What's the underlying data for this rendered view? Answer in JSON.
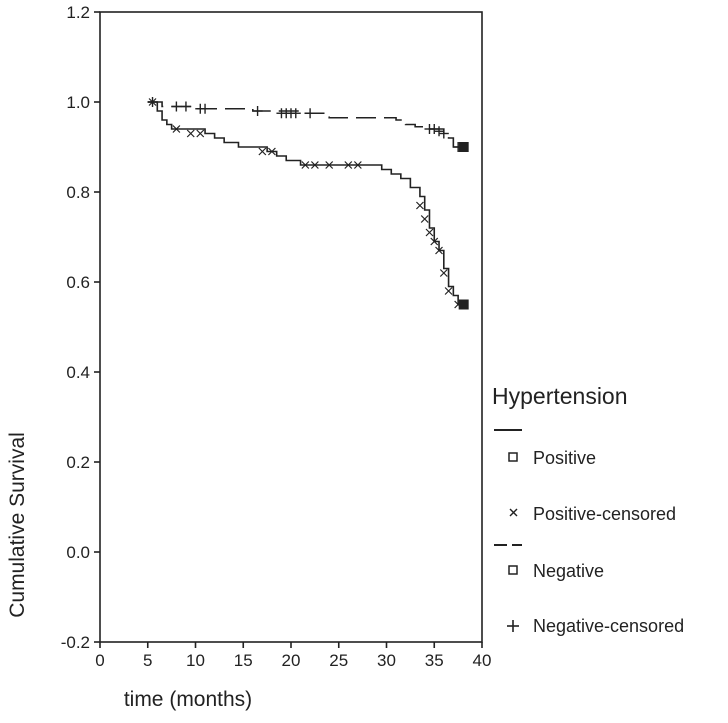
{
  "chart_data": {
    "type": "line",
    "title": "",
    "xlabel": "time (months)",
    "ylabel": "Cumulative Survival",
    "xlim": [
      0,
      40
    ],
    "ylim": [
      -0.2,
      1.2
    ],
    "x_ticks": [
      "0",
      "5",
      "10",
      "15",
      "20",
      "25",
      "30",
      "35",
      "40"
    ],
    "y_ticks": [
      "-0.2",
      "0.0",
      "0.2",
      "0.4",
      "0.6",
      "0.8",
      "1.0",
      "1.2"
    ],
    "grid": false,
    "legend": {
      "title": "Hypertension",
      "placement": "right",
      "items": [
        {
          "label": "Positive",
          "symbol": "solid-line-square"
        },
        {
          "label": "Positive-censored",
          "symbol": "x-mark"
        },
        {
          "label": "Negative",
          "symbol": "dashed-line-square"
        },
        {
          "label": "Negative-censored",
          "symbol": "plus-mark"
        }
      ]
    },
    "series": [
      {
        "name": "Positive",
        "style": "solid",
        "step": [
          [
            5,
            1.0
          ],
          [
            6,
            0.98
          ],
          [
            6.5,
            0.96
          ],
          [
            7,
            0.95
          ],
          [
            7.5,
            0.94
          ],
          [
            11,
            0.93
          ],
          [
            12,
            0.92
          ],
          [
            13,
            0.91
          ],
          [
            14.5,
            0.9
          ],
          [
            17.5,
            0.89
          ],
          [
            18.5,
            0.88
          ],
          [
            19.5,
            0.87
          ],
          [
            21,
            0.86
          ],
          [
            29.5,
            0.85
          ],
          [
            30.5,
            0.84
          ],
          [
            31.5,
            0.83
          ],
          [
            32.5,
            0.81
          ],
          [
            33.5,
            0.79
          ],
          [
            34,
            0.76
          ],
          [
            34.5,
            0.72
          ],
          [
            35,
            0.69
          ],
          [
            35.5,
            0.67
          ],
          [
            36,
            0.63
          ],
          [
            36.5,
            0.59
          ],
          [
            37,
            0.57
          ],
          [
            37.5,
            0.55
          ],
          [
            38.5,
            0.55
          ]
        ],
        "censored": [
          [
            5.5,
            1.0
          ],
          [
            8,
            0.94
          ],
          [
            9.5,
            0.93
          ],
          [
            10.5,
            0.93
          ],
          [
            17,
            0.89
          ],
          [
            18,
            0.89
          ],
          [
            21.5,
            0.86
          ],
          [
            22.5,
            0.86
          ],
          [
            24,
            0.86
          ],
          [
            26,
            0.86
          ],
          [
            27,
            0.86
          ],
          [
            33.5,
            0.77
          ],
          [
            34,
            0.74
          ],
          [
            34.5,
            0.71
          ],
          [
            35,
            0.69
          ],
          [
            35.5,
            0.67
          ],
          [
            36,
            0.62
          ],
          [
            36.5,
            0.58
          ],
          [
            37.5,
            0.55
          ],
          [
            38,
            0.55
          ]
        ]
      },
      {
        "name": "Negative",
        "style": "dashed",
        "step": [
          [
            5,
            1.0
          ],
          [
            6.5,
            0.99
          ],
          [
            10,
            0.985
          ],
          [
            16,
            0.98
          ],
          [
            21,
            0.975
          ],
          [
            24,
            0.965
          ],
          [
            31,
            0.96
          ],
          [
            32,
            0.95
          ],
          [
            33,
            0.945
          ],
          [
            34,
            0.94
          ],
          [
            36,
            0.93
          ],
          [
            36.5,
            0.92
          ],
          [
            37,
            0.9
          ],
          [
            38.5,
            0.9
          ]
        ],
        "censored": [
          [
            5.5,
            1.0
          ],
          [
            8,
            0.99
          ],
          [
            9,
            0.99
          ],
          [
            10.5,
            0.985
          ],
          [
            11,
            0.985
          ],
          [
            16.5,
            0.98
          ],
          [
            19,
            0.975
          ],
          [
            19.5,
            0.975
          ],
          [
            20,
            0.975
          ],
          [
            20.5,
            0.975
          ],
          [
            22,
            0.975
          ],
          [
            34.5,
            0.94
          ],
          [
            35,
            0.94
          ],
          [
            35.5,
            0.935
          ],
          [
            36,
            0.93
          ],
          [
            37.5,
            0.9
          ],
          [
            38,
            0.9
          ]
        ]
      }
    ]
  }
}
